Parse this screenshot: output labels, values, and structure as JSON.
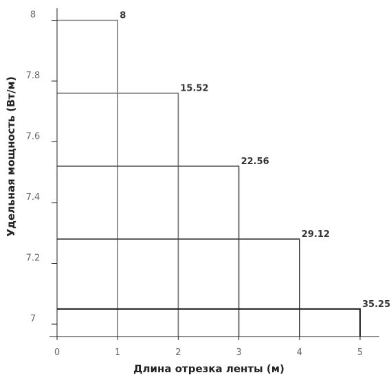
{
  "chart_data": {
    "type": "bar",
    "title": "",
    "xlabel": "Длина отрезка ленты (м)",
    "ylabel": "Удельная мощность (Вт/м)",
    "xlim": [
      0,
      5
    ],
    "ylim": [
      6.95,
      8.4
    ],
    "x_ticks": [
      "0",
      "1",
      "2",
      "3",
      "4",
      "5"
    ],
    "y_ticks": [
      "7",
      "7.2",
      "7.4",
      "7.6",
      "7.8",
      "8"
    ],
    "grid": false,
    "legend": "none",
    "series": [
      {
        "length": 1,
        "value": 8.0,
        "label": "8",
        "color": "#7a7a7a"
      },
      {
        "length": 2,
        "value": 7.76,
        "label": "15.52",
        "color": "#6b6b6b"
      },
      {
        "length": 3,
        "value": 7.52,
        "label": "22.56",
        "color": "#555555"
      },
      {
        "length": 4,
        "value": 7.28,
        "label": "29.12",
        "color": "#3a3a3a"
      },
      {
        "length": 5,
        "value": 7.05,
        "label": "35.25",
        "color": "#1f1f1f"
      }
    ]
  }
}
